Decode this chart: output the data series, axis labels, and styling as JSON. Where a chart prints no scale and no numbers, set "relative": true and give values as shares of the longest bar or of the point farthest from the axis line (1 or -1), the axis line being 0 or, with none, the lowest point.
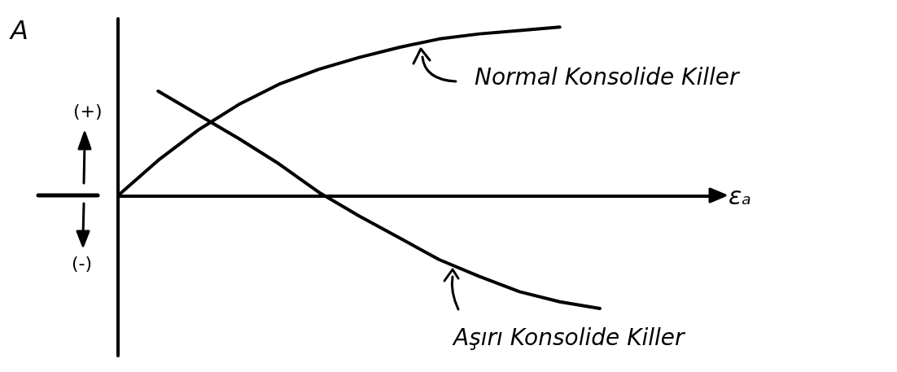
{
  "chart_data": {
    "type": "line",
    "relative": true,
    "ylabel": "A",
    "xlabel": "εₐ",
    "marker": "none",
    "line_style": "solid",
    "categories": [
      null,
      null,
      null,
      null,
      null,
      null,
      null,
      null,
      null,
      null,
      null,
      null,
      null,
      null,
      null,
      null
    ],
    "series": [
      {
        "name": "Normal Konsolide Killer",
        "color": "#000000",
        "values": [
          0,
          0.21,
          0.39,
          0.54,
          0.66,
          0.75,
          0.82,
          0.88,
          0.93,
          0.96,
          0.98,
          1,
          null,
          null,
          null,
          null
        ]
      },
      {
        "name": "Aşırı Konsolide Killer",
        "color": "#000000",
        "values": [
          null,
          0.62,
          0.48,
          0.34,
          0.19,
          0.02,
          -0.12,
          -0.25,
          -0.38,
          -0.48,
          -0.57,
          -0.63,
          -0.67,
          null,
          null,
          null
        ]
      }
    ],
    "annotations": [
      "(+)",
      "(-)"
    ]
  }
}
